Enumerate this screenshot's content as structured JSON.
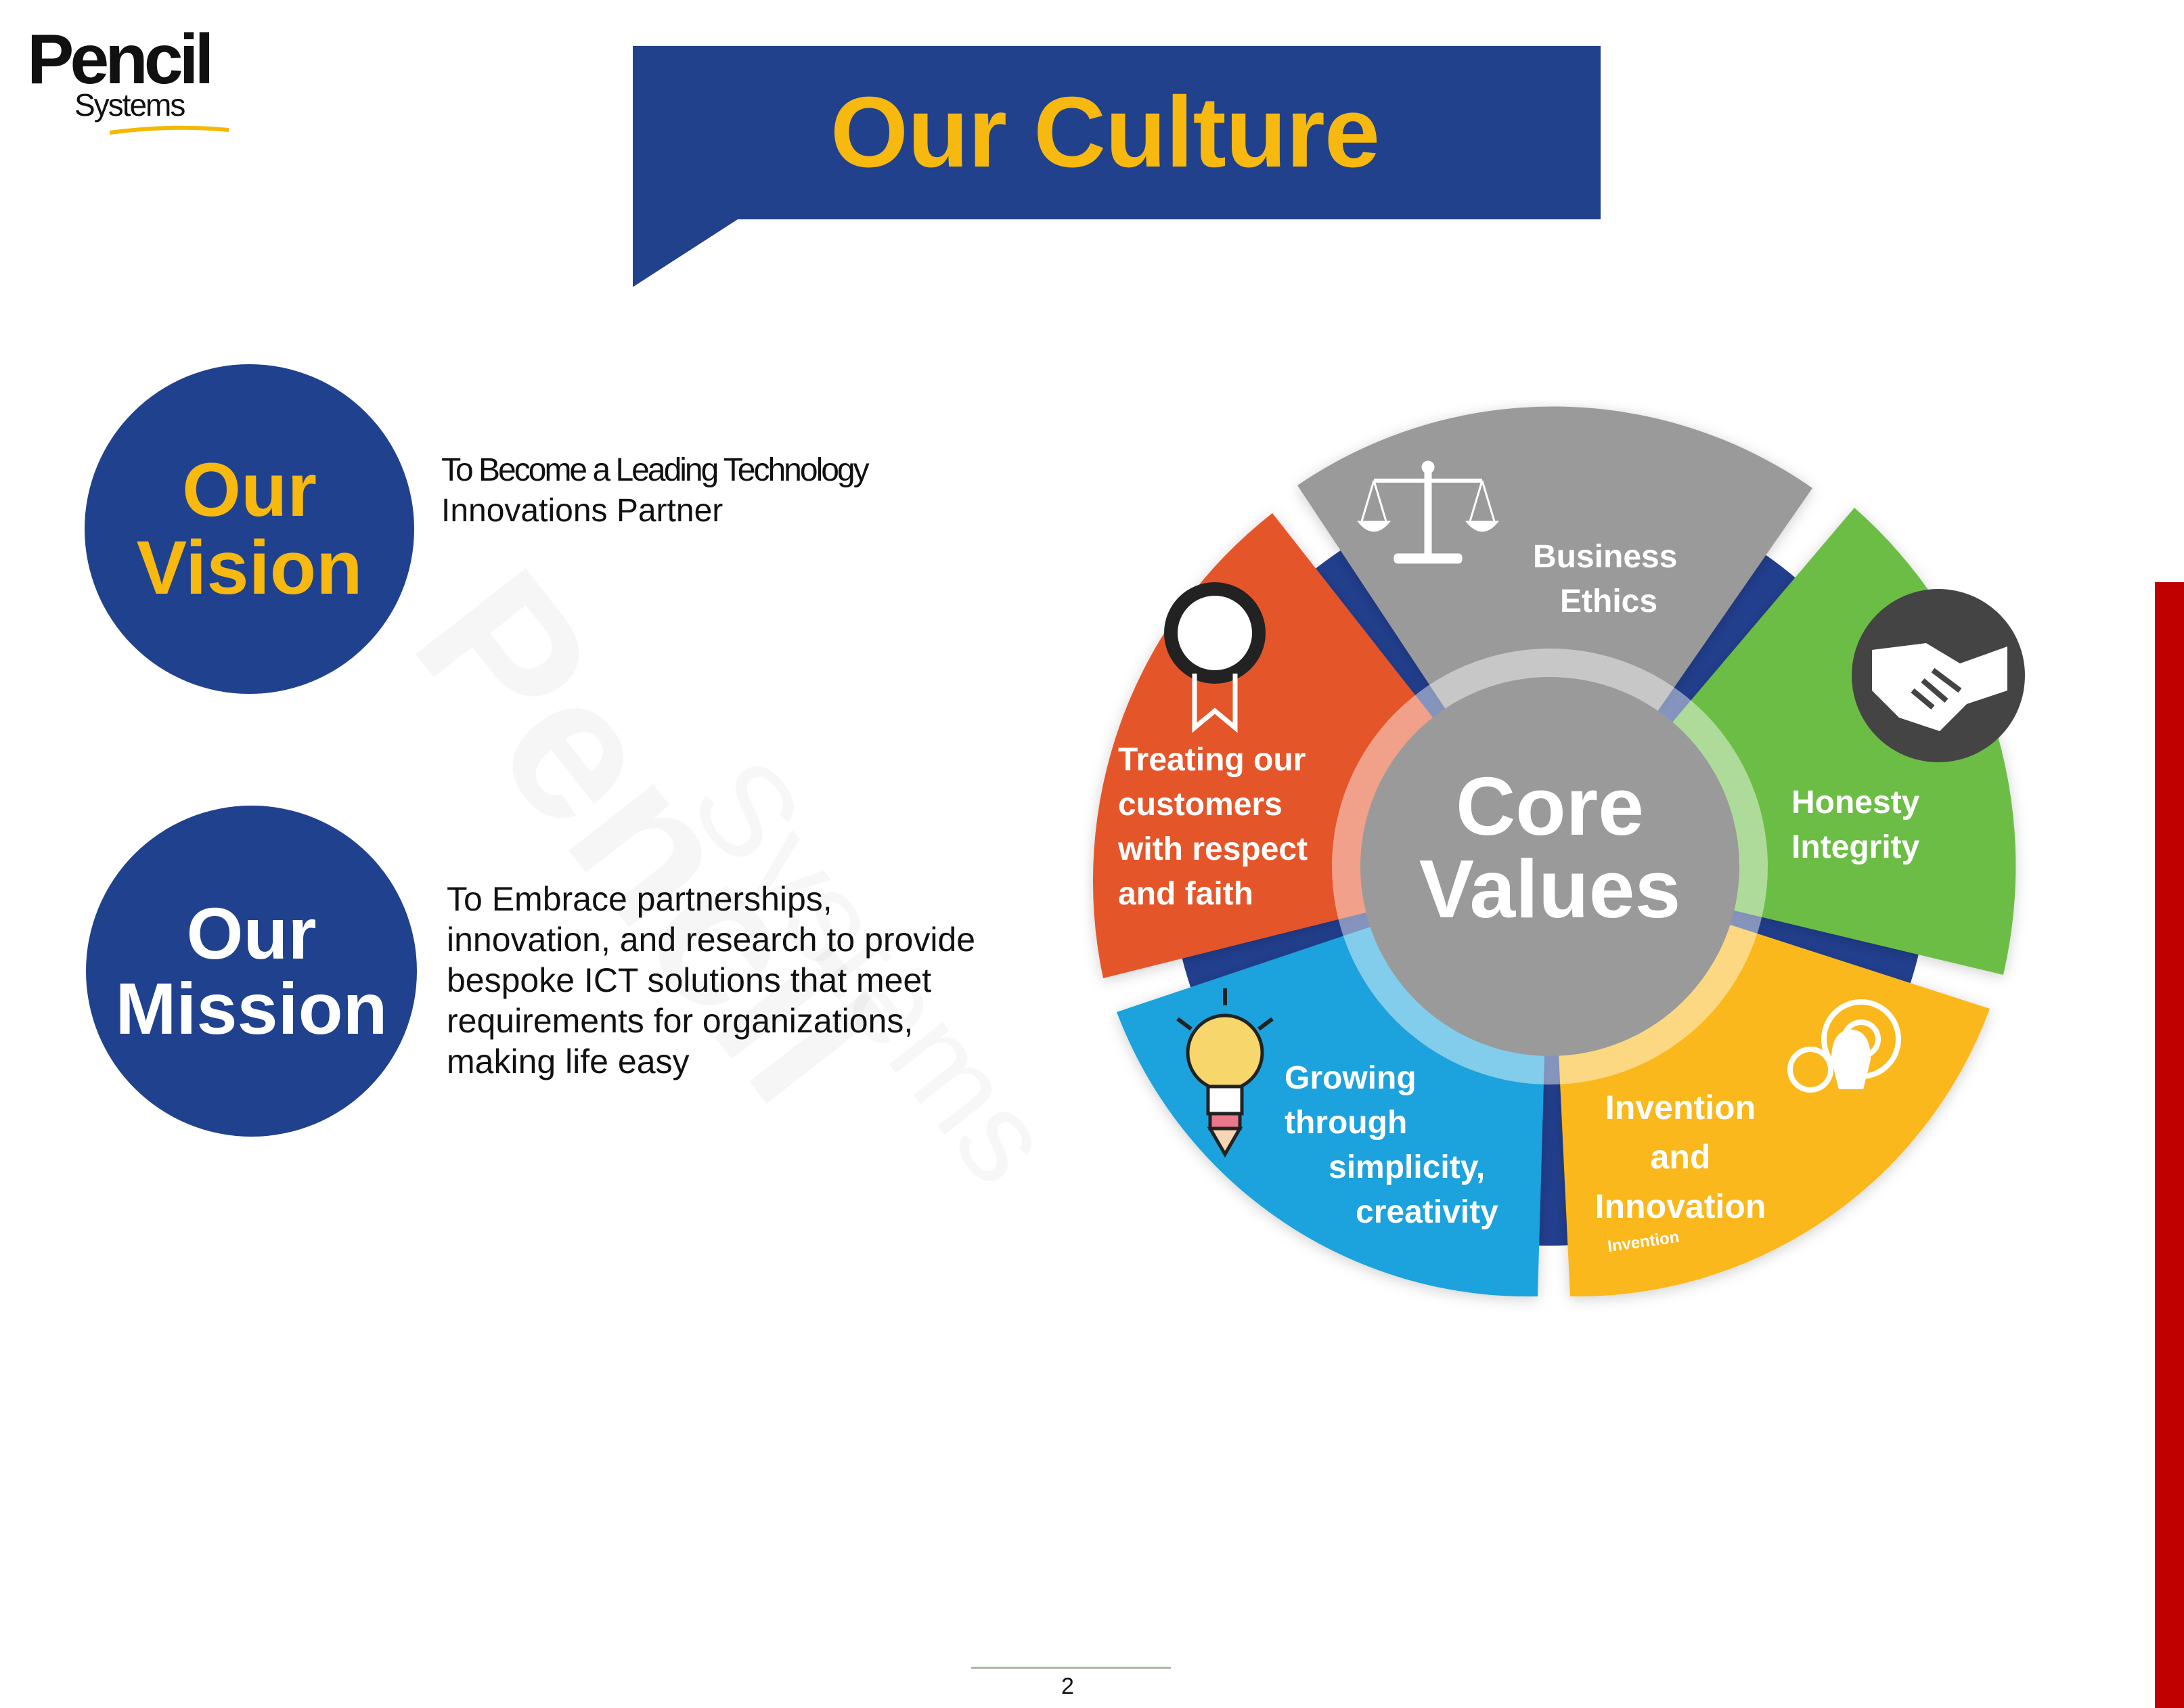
{
  "logo": {
    "word": "Pencil",
    "sub": "Systems"
  },
  "banner": {
    "title": "Our Culture"
  },
  "vision": {
    "heading_line1": "Our",
    "heading_line2": "Vision",
    "text_line1": "To Become a Leading Technology",
    "text_line2": "Innovations Partner"
  },
  "mission": {
    "heading_line1": "Our",
    "heading_line2": "Mission",
    "text_lines": [
      "To Embrace partnerships,",
      "innovation, and research to provide",
      "bespoke ICT solutions that meet",
      "requirements for organizations,",
      "making life easy"
    ]
  },
  "watermark": {
    "word": "Pencil",
    "sub": "Systems"
  },
  "core_values": {
    "center_line1": "Core",
    "center_line2": "Values",
    "segments": [
      {
        "name": "business-ethics",
        "lines": [
          "Business",
          "Ethics"
        ],
        "color": "#9a9a9a",
        "icon": "scales-icon"
      },
      {
        "name": "honesty",
        "lines": [
          "Honesty",
          "Integrity"
        ],
        "color": "#6cbd45",
        "icon": "handshake-icon"
      },
      {
        "name": "invention",
        "lines": [
          "Invention",
          "and",
          "Innovation"
        ],
        "color": "#fab81b",
        "icon": "gear-bulb-icon",
        "caption": "Invention"
      },
      {
        "name": "growing",
        "lines": [
          "Growing",
          "through",
          "simplicity,",
          "creativity"
        ],
        "color": "#1fa2dc",
        "icon": "lightbulb-pencil-icon"
      },
      {
        "name": "treating",
        "lines": [
          "Treating our",
          "customers",
          "with respect",
          "and faith"
        ],
        "color": "#e5552a",
        "icon": "award-ribbon-icon"
      }
    ]
  },
  "footer": {
    "page_number": "2"
  }
}
